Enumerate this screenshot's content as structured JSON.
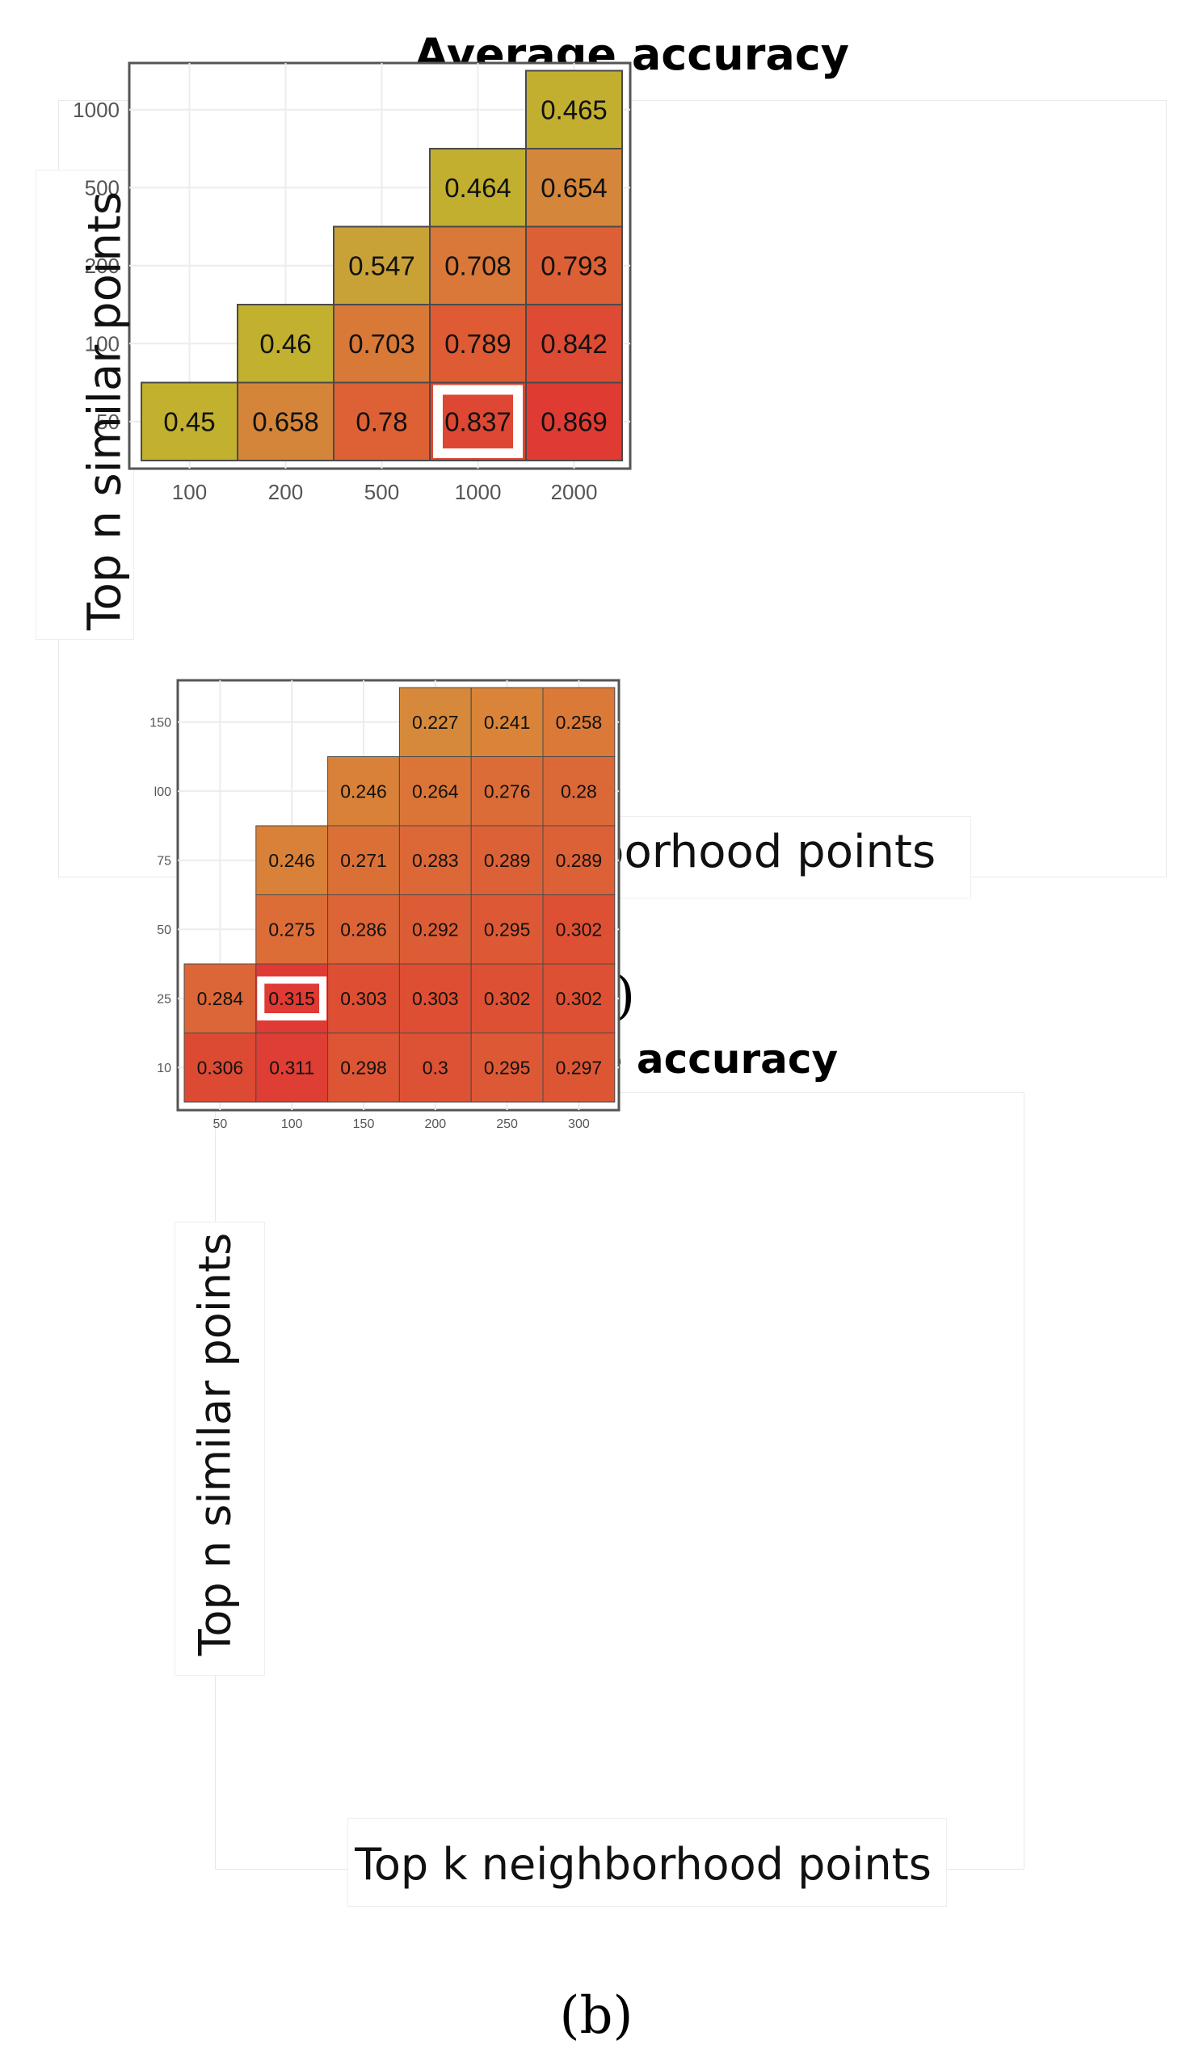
{
  "chart_data": [
    {
      "type": "heatmap",
      "panel": "(a)",
      "title": "Average accuracy",
      "xlabel": "Top k neighborhood points",
      "ylabel": "Top n similar points",
      "x_categories": [
        "100",
        "200",
        "500",
        "1000",
        "2000"
      ],
      "y_categories": [
        "50",
        "100",
        "200",
        "500",
        "1000"
      ],
      "cells": [
        {
          "x": "100",
          "y": "50",
          "value": "0.45",
          "color": "#c2b02f"
        },
        {
          "x": "200",
          "y": "50",
          "value": "0.658",
          "color": "#d4853a"
        },
        {
          "x": "200",
          "y": "100",
          "value": "0.46",
          "color": "#c2b02f"
        },
        {
          "x": "500",
          "y": "50",
          "value": "0.78",
          "color": "#de6135"
        },
        {
          "x": "500",
          "y": "100",
          "value": "0.703",
          "color": "#d97938"
        },
        {
          "x": "500",
          "y": "200",
          "value": "0.547",
          "color": "#c9a237"
        },
        {
          "x": "1000",
          "y": "50",
          "value": "0.837",
          "color": "#de4733"
        },
        {
          "x": "1000",
          "y": "100",
          "value": "0.789",
          "color": "#de5b34"
        },
        {
          "x": "1000",
          "y": "200",
          "value": "0.708",
          "color": "#d97838"
        },
        {
          "x": "1000",
          "y": "500",
          "value": "0.464",
          "color": "#c2af2f"
        },
        {
          "x": "2000",
          "y": "50",
          "value": "0.869",
          "color": "#df3b33"
        },
        {
          "x": "2000",
          "y": "100",
          "value": "0.842",
          "color": "#de4a33"
        },
        {
          "x": "2000",
          "y": "200",
          "value": "0.793",
          "color": "#dd5f35"
        },
        {
          "x": "2000",
          "y": "500",
          "value": "0.654",
          "color": "#d4873a"
        },
        {
          "x": "2000",
          "y": "1000",
          "value": "0.465",
          "color": "#c2af2f"
        }
      ],
      "highlight": {
        "x": "1000",
        "y": "50"
      },
      "grid": true
    },
    {
      "type": "heatmap",
      "panel": "(b)",
      "title": "Average accuracy",
      "xlabel": "Top k neighborhood points",
      "ylabel": "Top n similar points",
      "x_categories": [
        "50",
        "100",
        "150",
        "200",
        "250",
        "300"
      ],
      "y_categories": [
        "10",
        "25",
        "50",
        "75",
        "100",
        "150"
      ],
      "y_tick_labels": [
        "10",
        "25",
        "50",
        "75",
        "l00",
        "150"
      ],
      "cells": [
        {
          "x": "50",
          "y": "10",
          "value": "0.306",
          "color": "#dd4a33"
        },
        {
          "x": "50",
          "y": "25",
          "value": "0.284",
          "color": "#dc6637"
        },
        {
          "x": "100",
          "y": "10",
          "value": "0.311",
          "color": "#de3e33"
        },
        {
          "x": "100",
          "y": "25",
          "value": "0.315",
          "color": "#df3a33"
        },
        {
          "x": "100",
          "y": "50",
          "value": "0.275",
          "color": "#dc6d37"
        },
        {
          "x": "100",
          "y": "75",
          "value": "0.246",
          "color": "#d98138"
        },
        {
          "x": "150",
          "y": "10",
          "value": "0.298",
          "color": "#dd5534"
        },
        {
          "x": "150",
          "y": "25",
          "value": "0.303",
          "color": "#dd4e33"
        },
        {
          "x": "150",
          "y": "50",
          "value": "0.286",
          "color": "#dc6436"
        },
        {
          "x": "150",
          "y": "75",
          "value": "0.271",
          "color": "#db7037"
        },
        {
          "x": "150",
          "y": "100",
          "value": "0.246",
          "color": "#d98138"
        },
        {
          "x": "200",
          "y": "10",
          "value": "0.3",
          "color": "#dd5234"
        },
        {
          "x": "200",
          "y": "25",
          "value": "0.303",
          "color": "#dd4e33"
        },
        {
          "x": "200",
          "y": "50",
          "value": "0.292",
          "color": "#dc5d35"
        },
        {
          "x": "200",
          "y": "75",
          "value": "0.283",
          "color": "#dc6737"
        },
        {
          "x": "200",
          "y": "100",
          "value": "0.264",
          "color": "#da7537"
        },
        {
          "x": "200",
          "y": "150",
          "value": "0.227",
          "color": "#d6893a"
        },
        {
          "x": "250",
          "y": "10",
          "value": "0.295",
          "color": "#dd5935"
        },
        {
          "x": "250",
          "y": "25",
          "value": "0.302",
          "color": "#dd5033"
        },
        {
          "x": "250",
          "y": "50",
          "value": "0.295",
          "color": "#dd5935"
        },
        {
          "x": "250",
          "y": "75",
          "value": "0.289",
          "color": "#dc6136"
        },
        {
          "x": "250",
          "y": "100",
          "value": "0.276",
          "color": "#db6c37"
        },
        {
          "x": "250",
          "y": "150",
          "value": "0.241",
          "color": "#d98438"
        },
        {
          "x": "300",
          "y": "10",
          "value": "0.297",
          "color": "#dd5634"
        },
        {
          "x": "300",
          "y": "25",
          "value": "0.302",
          "color": "#dd5033"
        },
        {
          "x": "300",
          "y": "50",
          "value": "0.302",
          "color": "#dd5033"
        },
        {
          "x": "300",
          "y": "75",
          "value": "0.289",
          "color": "#dc6136"
        },
        {
          "x": "300",
          "y": "100",
          "value": "0.28",
          "color": "#db6937"
        },
        {
          "x": "300",
          "y": "150",
          "value": "0.258",
          "color": "#da7938"
        }
      ],
      "highlight": {
        "x": "100",
        "y": "25"
      },
      "grid": true
    }
  ]
}
